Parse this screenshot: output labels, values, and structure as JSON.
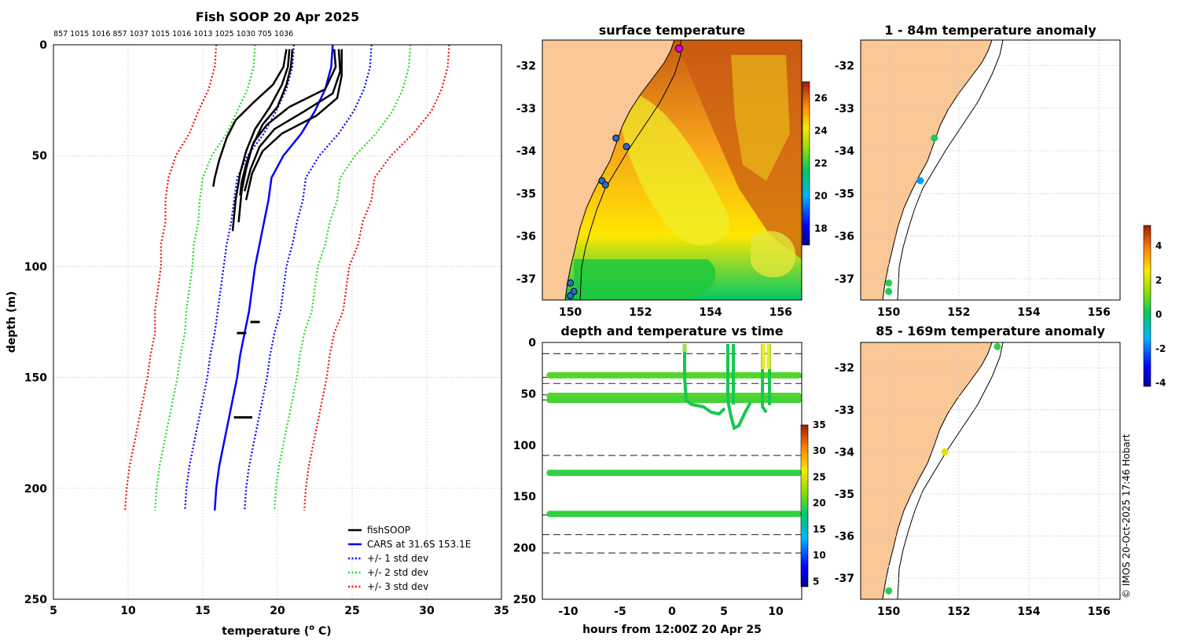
{
  "figure_title": "Fish SOOP 20 Apr 2025",
  "credit": "© IMOS 20-Oct-2025 17:46 Hobart",
  "chart_data": [
    {
      "id": "profile",
      "type": "line",
      "title": "Fish SOOP 20 Apr 2025",
      "xlabel": "temperature (o C)",
      "ylabel": "depth (m)",
      "xlim": [
        5,
        35
      ],
      "ylim": [
        250,
        0
      ],
      "x_ticks": [
        "5",
        "10",
        "15",
        "20",
        "25",
        "30",
        "35"
      ],
      "y_ticks": [
        "0",
        "50",
        "100",
        "150",
        "200",
        "250"
      ],
      "top_labels": [
        "857",
        "1015",
        "1016",
        "857",
        "1037",
        "1015",
        "1016",
        "1013",
        "1025",
        "1030",
        "705",
        "1036"
      ],
      "legend": [
        "fishSOOP",
        "CARS at 31.6S 153.1E",
        "+/- 1 std dev",
        "+/- 2 std dev",
        "+/- 3 std dev"
      ],
      "legend_position": "bottom-right",
      "cars_depth": [
        0,
        10,
        20,
        30,
        40,
        50,
        60,
        70,
        80,
        90,
        100,
        110,
        120,
        130,
        140,
        150,
        160,
        170,
        180,
        190,
        200,
        210
      ],
      "cars_mean": [
        23.7,
        23.6,
        23.2,
        22.5,
        21.6,
        20.4,
        19.6,
        19.4,
        19.1,
        18.8,
        18.5,
        18.3,
        18.1,
        17.8,
        17.5,
        17.3,
        17.0,
        16.7,
        16.4,
        16.1,
        15.9,
        15.8
      ],
      "std_dev": [
        2.6,
        2.6,
        2.6,
        2.6,
        2.5,
        2.4,
        2.3,
        2.3,
        2.2,
        2.2,
        2.1,
        2.1,
        2.1,
        2.0,
        2.0,
        2.0,
        2.0,
        2.0,
        2.0,
        2.0,
        2.0,
        2.0
      ],
      "series": [
        {
          "name": "fishSOOP",
          "x": [
            20.8,
            20.7,
            20.3,
            19.5,
            18.5,
            17.9,
            17.5,
            17.2,
            17.0
          ],
          "y": [
            2,
            10,
            18,
            28,
            38,
            48,
            58,
            70,
            84
          ]
        },
        {
          "name": "fishSOOP",
          "x": [
            21.0,
            20.9,
            20.6,
            20.0,
            19.0,
            18.3,
            17.9,
            17.6,
            17.4
          ],
          "y": [
            2,
            10,
            18,
            28,
            36,
            46,
            56,
            66,
            80
          ]
        },
        {
          "name": "fishSOOP",
          "x": [
            20.6,
            20.4,
            19.7,
            18.4,
            17.2,
            16.6,
            16.1,
            15.8,
            15.7
          ],
          "y": [
            2,
            10,
            18,
            26,
            34,
            42,
            52,
            60,
            64
          ]
        },
        {
          "name": "fishSOOP",
          "x": [
            23.8,
            23.9,
            23.2,
            20.8,
            19.3,
            18.4,
            17.9,
            17.6,
            17.5
          ],
          "y": [
            2,
            10,
            20,
            28,
            36,
            44,
            54,
            62,
            68
          ]
        },
        {
          "name": "fishSOOP",
          "x": [
            24.1,
            24.2,
            23.7,
            21.8,
            19.8,
            18.8,
            18.2,
            17.8
          ],
          "y": [
            2,
            12,
            22,
            30,
            38,
            46,
            56,
            66
          ]
        },
        {
          "name": "fishSOOP",
          "x": [
            24.3,
            24.3,
            24.0,
            22.6,
            20.3,
            19.0,
            18.3,
            17.9
          ],
          "y": [
            2,
            14,
            24,
            32,
            40,
            48,
            58,
            70
          ]
        }
      ]
    },
    {
      "id": "sst",
      "type": "heatmap",
      "title": "surface temperature",
      "xlim": [
        149.2,
        156.6
      ],
      "ylim": [
        -37.5,
        -31.4
      ],
      "x_ticks": [
        "150",
        "152",
        "154",
        "156"
      ],
      "y_ticks": [
        "-32",
        "-33",
        "-34",
        "-35",
        "-36",
        "-37"
      ],
      "colorbar_ticks": [
        "18",
        "20",
        "22",
        "24",
        "26"
      ],
      "colorbar_range": [
        17,
        27
      ],
      "stations": [
        {
          "lon": 153.1,
          "lat": -31.6
        },
        {
          "lon": 151.3,
          "lat": -33.7
        },
        {
          "lon": 151.6,
          "lat": -33.9
        },
        {
          "lon": 150.9,
          "lat": -34.7
        },
        {
          "lon": 151.0,
          "lat": -34.8
        },
        {
          "lon": 150.0,
          "lat": -37.1
        },
        {
          "lon": 150.1,
          "lat": -37.3
        },
        {
          "lon": 150.0,
          "lat": -37.4
        }
      ]
    },
    {
      "id": "depth_time",
      "type": "scatter",
      "title": "depth and temperature vs time",
      "xlabel": "hours from 12:00Z 20 Apr 25",
      "xlim": [
        -12.5,
        12.5
      ],
      "ylim": [
        250,
        0
      ],
      "x_ticks": [
        "-10",
        "-5",
        "0",
        "5",
        "10"
      ],
      "y_ticks": [
        "0",
        "50",
        "100",
        "150",
        "200",
        "250"
      ],
      "colorbar_ticks": [
        "5",
        "10",
        "15",
        "20",
        "25",
        "30",
        "35"
      ],
      "colorbar_range": [
        4,
        35
      ],
      "reference_depths": [
        11,
        34,
        40,
        51,
        56,
        110,
        168,
        187,
        205
      ],
      "tracks": [
        {
          "depth": 32,
          "t0": -11.8,
          "t1": 12.2,
          "temp": 20.5
        },
        {
          "depth": 52,
          "t0": -11.8,
          "t1": 12.2,
          "temp": 20.5
        },
        {
          "depth": 56,
          "t0": -11.8,
          "t1": 12.2,
          "temp": 20.0
        },
        {
          "depth": 127,
          "t0": -11.8,
          "t1": 12.2,
          "temp": 19.5
        },
        {
          "depth": 167,
          "t0": -11.8,
          "t1": 12.2,
          "temp": 19.5
        }
      ]
    },
    {
      "id": "anom_shallow",
      "type": "scatter",
      "title": "1 - 84m temperature anomaly",
      "xlim": [
        149.2,
        156.6
      ],
      "ylim": [
        -37.5,
        -31.4
      ],
      "x_ticks": [
        "150",
        "152",
        "154",
        "156"
      ],
      "y_ticks": [
        "-32",
        "-33",
        "-34",
        "-35",
        "-36",
        "-37"
      ],
      "points": [
        {
          "lon": 151.3,
          "lat": -33.7,
          "anomaly": 0.3
        },
        {
          "lon": 150.9,
          "lat": -34.7,
          "anomaly": -1.6
        },
        {
          "lon": 150.0,
          "lat": -37.1,
          "anomaly": 0.4
        },
        {
          "lon": 150.0,
          "lat": -37.3,
          "anomaly": 0.3
        }
      ]
    },
    {
      "id": "anom_deep",
      "type": "scatter",
      "title": "85 - 169m temperature anomaly",
      "xlim": [
        149.2,
        156.6
      ],
      "ylim": [
        -37.5,
        -31.4
      ],
      "x_ticks": [
        "150",
        "152",
        "154",
        "156"
      ],
      "y_ticks": [
        "-32",
        "-33",
        "-34",
        "-35",
        "-36",
        "-37"
      ],
      "points": [
        {
          "lon": 153.1,
          "lat": -31.5,
          "anomaly": 0.5
        },
        {
          "lon": 151.6,
          "lat": -34.0,
          "anomaly": 2.3
        },
        {
          "lon": 150.0,
          "lat": -37.3,
          "anomaly": 0.4
        }
      ],
      "colorbar_ticks": [
        "-4",
        "-2",
        "0",
        "2",
        "4"
      ],
      "colorbar_range": [
        -4.2,
        5.2
      ]
    }
  ]
}
